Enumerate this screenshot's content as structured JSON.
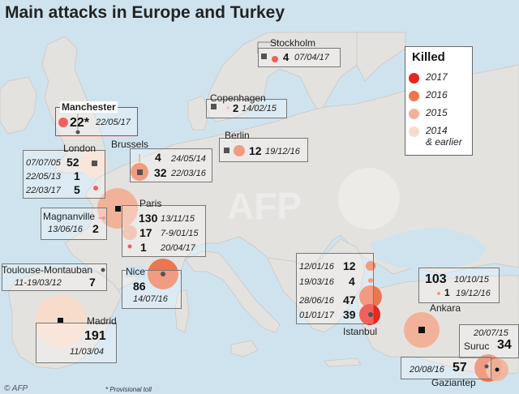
{
  "title": "Main attacks in Europe and Turkey",
  "legend": {
    "title": "Killed",
    "items": [
      {
        "label": "2017",
        "color": "#e8251e"
      },
      {
        "label": "2016",
        "color": "#ec7650"
      },
      {
        "label": "2015",
        "color": "#f2b29a"
      },
      {
        "label": "2014\n& earlier",
        "color": "#f7dccb"
      }
    ]
  },
  "cities": {
    "stockholm": "Stockholm",
    "copenhagen": "Copenhagen",
    "manchester": "Manchester",
    "london": "London",
    "brussels": "Brussels",
    "berlin": "Berlin",
    "paris": "Paris",
    "magnanville": "Magnanville",
    "toulouse": "Toulouse-Montauban",
    "nice": "Nice",
    "madrid": "Madrid",
    "istanbul": "Istanbul",
    "ankara": "Ankara",
    "suruc": "Suruc",
    "gaziantep": "Gaziantep"
  },
  "attacks": {
    "stockholm": {
      "killed": "4",
      "date": "07/04/17"
    },
    "copenhagen": {
      "killed": "2",
      "date": "14/02/15"
    },
    "manchester": {
      "killed": "22*",
      "date": "22/05/17"
    },
    "london_1": {
      "killed": "52",
      "date": "07/07/05"
    },
    "london_2": {
      "killed": "1",
      "date": "22/05/13"
    },
    "london_3": {
      "killed": "5",
      "date": "22/03/17"
    },
    "brussels_1": {
      "killed": "4",
      "date": "24/05/14"
    },
    "brussels_2": {
      "killed": "32",
      "date": "22/03/16"
    },
    "berlin": {
      "killed": "12",
      "date": "19/12/16"
    },
    "paris_1": {
      "killed": "130",
      "date": "13/11/15"
    },
    "paris_2": {
      "killed": "17",
      "date": "7-9/01/15"
    },
    "paris_3": {
      "killed": "1",
      "date": "20/04/17"
    },
    "magnanville": {
      "killed": "2",
      "date": "13/06/16"
    },
    "toulouse": {
      "killed": "7",
      "date": "11-19/03/12"
    },
    "nice": {
      "killed": "86",
      "date": "14/07/16"
    },
    "madrid": {
      "killed": "191",
      "date": "11/03/04"
    },
    "istanbul_1": {
      "killed": "12",
      "date": "12/01/16"
    },
    "istanbul_2": {
      "killed": "4",
      "date": "19/03/16"
    },
    "istanbul_3": {
      "killed": "47",
      "date": "28/06/16"
    },
    "istanbul_4": {
      "killed": "39",
      "date": "01/01/17"
    },
    "ankara_1": {
      "killed": "103",
      "date": "10/10/15"
    },
    "ankara_2": {
      "killed": "1",
      "date": "19/12/16"
    },
    "suruc": {
      "killed": "34",
      "date": "20/07/15"
    },
    "gaziantep": {
      "killed": "57",
      "date": "20/08/16"
    }
  },
  "credit": "© AFP",
  "footnote": "* Provisional toll"
}
